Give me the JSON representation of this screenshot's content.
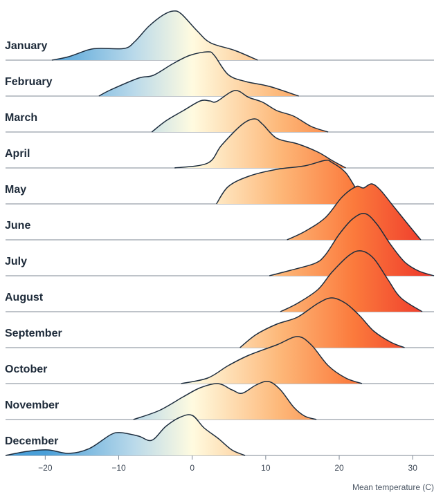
{
  "chart_data": {
    "type": "ridgeline",
    "title": "",
    "xlabel": "Mean temperature (C)",
    "ylabel": "",
    "xlim": [
      -25.4,
      32.9
    ],
    "xticks": [
      -20,
      -10,
      0,
      10,
      20,
      30
    ],
    "grid": false,
    "legend": "none",
    "density_units": "relative",
    "color_scale": {
      "-20": "#4a9fd8",
      "-8": "#b9d9ea",
      "0": "#fffbe0",
      "12": "#fdb778",
      "22": "#fb7a3c",
      "32": "#ef3b2c"
    },
    "line_color": "#1d2d3e",
    "baseline_color": "#7d8793",
    "series": [
      {
        "name": "January",
        "points": [
          [
            -19.1,
            0
          ],
          [
            -16.8,
            5
          ],
          [
            -14.1,
            15
          ],
          [
            -12.5,
            17
          ],
          [
            -9.2,
            17
          ],
          [
            -7.8,
            27
          ],
          [
            -5.9,
            49
          ],
          [
            -4.0,
            65
          ],
          [
            -2.6,
            71
          ],
          [
            -1.5,
            67
          ],
          [
            0.7,
            42
          ],
          [
            2.5,
            25
          ],
          [
            5.8,
            14
          ],
          [
            8.9,
            0
          ]
        ]
      },
      {
        "name": "February",
        "points": [
          [
            -12.7,
            0
          ],
          [
            -11.1,
            9
          ],
          [
            -7.3,
            26
          ],
          [
            -5.3,
            30
          ],
          [
            -2.6,
            47
          ],
          [
            -0.3,
            59
          ],
          [
            2.1,
            64
          ],
          [
            3.0,
            59
          ],
          [
            4.9,
            31
          ],
          [
            7.3,
            21
          ],
          [
            10.5,
            14
          ],
          [
            14.5,
            0
          ]
        ]
      },
      {
        "name": "March",
        "points": [
          [
            -5.5,
            0
          ],
          [
            -3.6,
            16
          ],
          [
            -1.2,
            31
          ],
          [
            1.1,
            45
          ],
          [
            2.4,
            45
          ],
          [
            3.3,
            44
          ],
          [
            5.8,
            60
          ],
          [
            7.7,
            50
          ],
          [
            9.6,
            43
          ],
          [
            11.5,
            31
          ],
          [
            13.8,
            23
          ],
          [
            16.2,
            8
          ],
          [
            18.5,
            0
          ]
        ]
      },
      {
        "name": "April",
        "points": [
          [
            -2.4,
            0
          ],
          [
            2.1,
            7
          ],
          [
            4.0,
            33
          ],
          [
            6.8,
            63
          ],
          [
            8.5,
            71
          ],
          [
            9.6,
            63
          ],
          [
            11.5,
            43
          ],
          [
            14.3,
            35
          ],
          [
            17.1,
            23
          ],
          [
            19.0,
            11
          ],
          [
            20.9,
            0
          ]
        ]
      },
      {
        "name": "May",
        "points": [
          [
            3.3,
            0
          ],
          [
            4.9,
            25
          ],
          [
            7.7,
            40
          ],
          [
            11.5,
            50
          ],
          [
            15.3,
            55
          ],
          [
            18.1,
            63
          ],
          [
            19.0,
            60
          ],
          [
            20.9,
            45
          ],
          [
            22.8,
            15
          ],
          [
            25.0,
            0
          ]
        ]
      },
      {
        "name": "June",
        "points": [
          [
            12.9,
            0
          ],
          [
            15.3,
            12
          ],
          [
            18.1,
            32
          ],
          [
            20.4,
            62
          ],
          [
            22.3,
            77
          ],
          [
            23.3,
            75
          ],
          [
            24.4,
            81
          ],
          [
            25.6,
            72
          ],
          [
            27.5,
            47
          ],
          [
            29.4,
            22
          ],
          [
            31.1,
            0
          ]
        ]
      },
      {
        "name": "July",
        "points": [
          [
            10.5,
            0
          ],
          [
            13.4,
            8
          ],
          [
            16.7,
            18
          ],
          [
            18.1,
            30
          ],
          [
            20.0,
            60
          ],
          [
            21.8,
            82
          ],
          [
            23.5,
            90
          ],
          [
            25.1,
            75
          ],
          [
            27.0,
            45
          ],
          [
            28.9,
            20
          ],
          [
            30.8,
            7
          ],
          [
            32.9,
            0
          ]
        ]
      },
      {
        "name": "August",
        "points": [
          [
            12.0,
            0
          ],
          [
            14.3,
            12
          ],
          [
            17.1,
            32
          ],
          [
            19.0,
            57
          ],
          [
            21.4,
            82
          ],
          [
            23.0,
            88
          ],
          [
            24.7,
            77
          ],
          [
            26.6,
            47
          ],
          [
            28.4,
            20
          ],
          [
            31.3,
            0
          ]
        ]
      },
      {
        "name": "September",
        "points": [
          [
            6.5,
            0
          ],
          [
            8.7,
            19
          ],
          [
            11.5,
            34
          ],
          [
            14.3,
            44
          ],
          [
            17.1,
            64
          ],
          [
            19.0,
            72
          ],
          [
            20.9,
            64
          ],
          [
            22.8,
            46
          ],
          [
            24.7,
            24
          ],
          [
            27.0,
            8
          ],
          [
            28.9,
            0
          ]
        ]
      },
      {
        "name": "October",
        "points": [
          [
            -1.5,
            0
          ],
          [
            2.1,
            8
          ],
          [
            4.9,
            26
          ],
          [
            7.7,
            41
          ],
          [
            11.5,
            56
          ],
          [
            14.3,
            68
          ],
          [
            16.2,
            56
          ],
          [
            18.5,
            26
          ],
          [
            20.9,
            8
          ],
          [
            23.1,
            0
          ]
        ]
      },
      {
        "name": "November",
        "points": [
          [
            -8.0,
            0
          ],
          [
            -4.5,
            13
          ],
          [
            -1.2,
            33
          ],
          [
            1.1,
            46
          ],
          [
            3.5,
            52
          ],
          [
            5.4,
            43
          ],
          [
            6.8,
            38
          ],
          [
            8.7,
            50
          ],
          [
            10.4,
            55
          ],
          [
            12.0,
            43
          ],
          [
            13.8,
            18
          ],
          [
            15.3,
            5
          ],
          [
            16.9,
            0
          ]
        ]
      },
      {
        "name": "December",
        "points": [
          [
            -25.4,
            0
          ],
          [
            -22.4,
            6
          ],
          [
            -19.6,
            8
          ],
          [
            -16.8,
            3
          ],
          [
            -14.0,
            10
          ],
          [
            -11.1,
            30
          ],
          [
            -9.7,
            33
          ],
          [
            -7.3,
            28
          ],
          [
            -5.5,
            22
          ],
          [
            -3.6,
            42
          ],
          [
            -1.7,
            55
          ],
          [
            0,
            58
          ],
          [
            1.6,
            40
          ],
          [
            3.5,
            25
          ],
          [
            5.4,
            8
          ],
          [
            7.2,
            0
          ]
        ]
      }
    ]
  }
}
